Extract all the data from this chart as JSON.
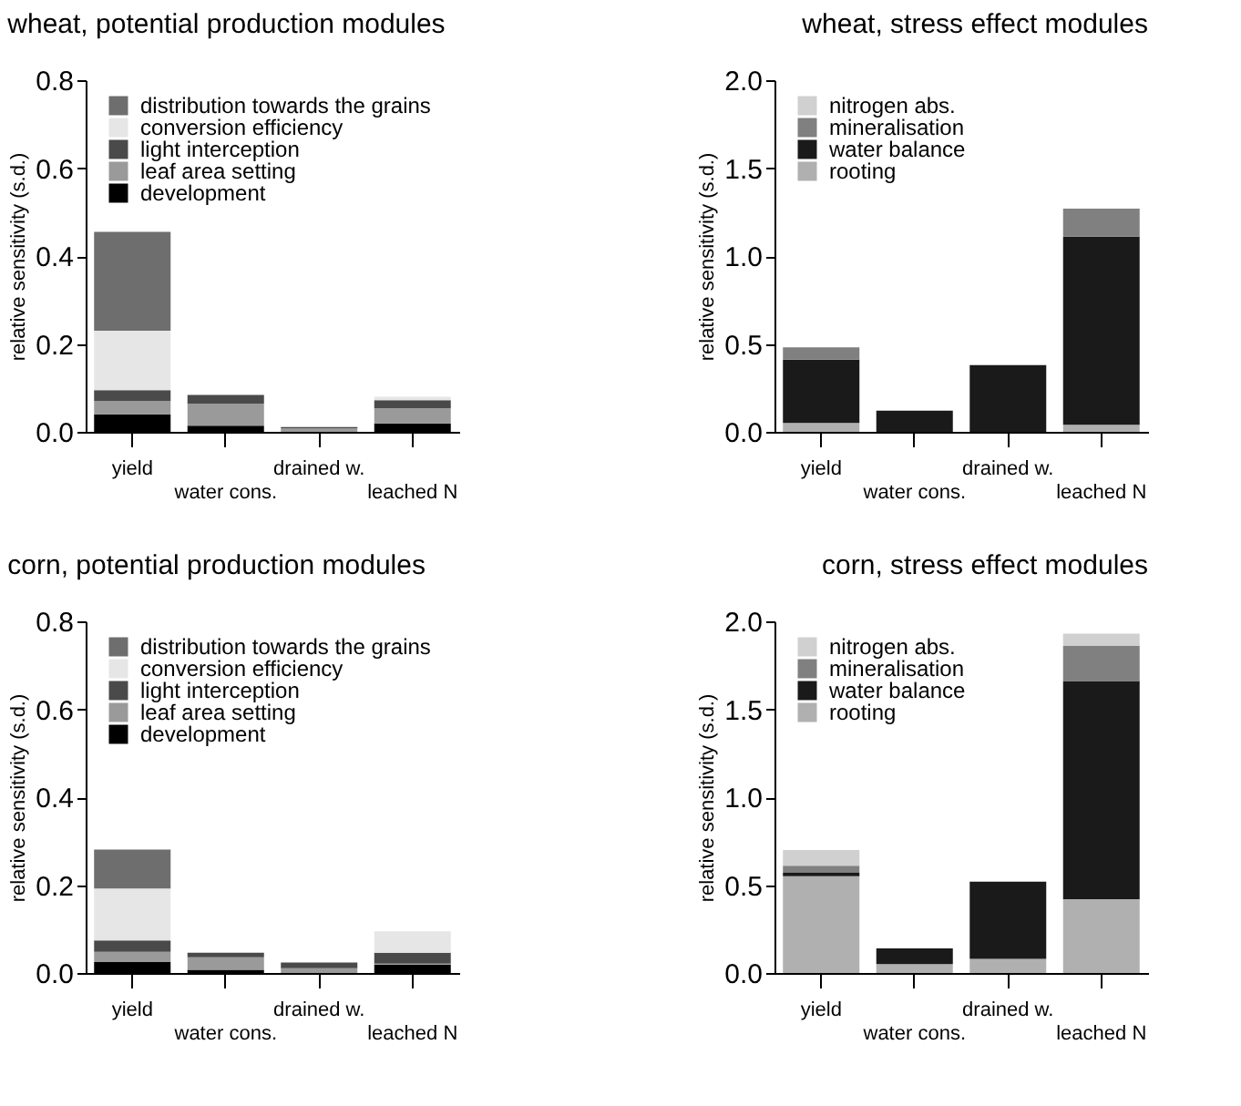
{
  "chart_data": [
    {
      "type": "bar",
      "stacked": true,
      "title": "wheat, potential production modules",
      "ylabel": "relative sensitivity (s.d.)",
      "categories": [
        "yield",
        "water cons.",
        "drained w.",
        "leached N"
      ],
      "ylim": [
        0,
        0.8
      ],
      "yticks": [
        {
          "value": 0,
          "label": "0.0"
        },
        {
          "value": 0.2,
          "label": "0.2"
        },
        {
          "value": 0.4,
          "label": "0.4"
        },
        {
          "value": 0.6,
          "label": "0.6"
        },
        {
          "value": 0.8,
          "label": "0.8"
        }
      ],
      "legend": "top left",
      "series": [
        {
          "name": "development",
          "color": "#000000",
          "values": [
            0.04,
            0.014,
            null,
            0.019
          ]
        },
        {
          "name": "leaf area setting",
          "color": "#9a9a9a",
          "values": [
            0.03,
            0.05,
            0.008,
            0.035
          ]
        },
        {
          "name": "light interception",
          "color": "#4a4a4a",
          "values": [
            0.025,
            0.02,
            0.003,
            0.018
          ]
        },
        {
          "name": "conversion efficiency",
          "color": "#e6e6e6",
          "values": [
            0.135,
            0,
            0,
            0.008
          ]
        },
        {
          "name": "distribution towards the grains",
          "color": "#6e6e6e",
          "values": [
            0.225,
            0,
            0,
            0
          ]
        }
      ]
    },
    {
      "type": "bar",
      "stacked": true,
      "title": "wheat, stress effect modules",
      "ylabel": "relative sensitivity (s.d.)",
      "categories": [
        "yield",
        "water cons.",
        "drained w.",
        "leached N"
      ],
      "ylim": [
        0,
        2
      ],
      "yticks": [
        {
          "value": 0,
          "label": "0.0"
        },
        {
          "value": 0.5,
          "label": "0.5"
        },
        {
          "value": 1,
          "label": "1.0"
        },
        {
          "value": 1.5,
          "label": "1.5"
        },
        {
          "value": 2,
          "label": "2.0"
        }
      ],
      "legend": "top left",
      "series": [
        {
          "name": "rooting",
          "color": "#b0b0b0",
          "values": [
            0.05,
            0,
            0,
            0.04
          ]
        },
        {
          "name": "water balance",
          "color": "#1a1a1a",
          "values": [
            0.36,
            0.12,
            0.38,
            1.07
          ]
        },
        {
          "name": "mineralisation",
          "color": "#808080",
          "values": [
            0.07,
            0,
            0,
            0.16
          ]
        },
        {
          "name": "nitrogen abs.",
          "color": "#d0d0d0",
          "values": [
            null,
            0,
            0,
            null
          ]
        }
      ]
    },
    {
      "type": "bar",
      "stacked": true,
      "title": "corn, potential production modules",
      "ylabel": "relative sensitivity (s.d.)",
      "categories": [
        "yield",
        "water cons.",
        "drained w.",
        "leached N"
      ],
      "ylim": [
        0,
        0.8
      ],
      "yticks": [
        {
          "value": 0,
          "label": "0.0"
        },
        {
          "value": 0.2,
          "label": "0.2"
        },
        {
          "value": 0.4,
          "label": "0.4"
        },
        {
          "value": 0.6,
          "label": "0.6"
        },
        {
          "value": 0.8,
          "label": "0.8"
        }
      ],
      "legend": "top left",
      "series": [
        {
          "name": "development",
          "color": "#000000",
          "values": [
            0.025,
            0.007,
            null,
            0.019
          ]
        },
        {
          "name": "leaf area setting",
          "color": "#9a9a9a",
          "values": [
            0.023,
            0.029,
            0.011,
            0.002
          ]
        },
        {
          "name": "light interception",
          "color": "#4a4a4a",
          "values": [
            0.026,
            0.01,
            0.013,
            0.025
          ]
        },
        {
          "name": "conversion efficiency",
          "color": "#e6e6e6",
          "values": [
            0.118,
            0,
            0,
            0.049
          ]
        },
        {
          "name": "distribution towards the grains",
          "color": "#6e6e6e",
          "values": [
            0.089,
            0,
            0,
            0
          ]
        }
      ]
    },
    {
      "type": "bar",
      "stacked": true,
      "title": "corn, stress effect modules",
      "ylabel": "relative sensitivity (s.d.)",
      "categories": [
        "yield",
        "water cons.",
        "drained w.",
        "leached N"
      ],
      "ylim": [
        0,
        2
      ],
      "yticks": [
        {
          "value": 0,
          "label": "0.0"
        },
        {
          "value": 0.5,
          "label": "0.5"
        },
        {
          "value": 1,
          "label": "1.0"
        },
        {
          "value": 1.5,
          "label": "1.5"
        },
        {
          "value": 2,
          "label": "2.0"
        }
      ],
      "legend": "top left",
      "series": [
        {
          "name": "rooting",
          "color": "#b0b0b0",
          "values": [
            0.55,
            0.05,
            0.08,
            0.42
          ]
        },
        {
          "name": "water balance",
          "color": "#1a1a1a",
          "values": [
            0.02,
            0.09,
            0.44,
            1.24
          ]
        },
        {
          "name": "mineralisation",
          "color": "#808080",
          "values": [
            0.04,
            0,
            0,
            0.2
          ]
        },
        {
          "name": "nitrogen abs.",
          "color": "#d0d0d0",
          "values": [
            0.09,
            0,
            0,
            0.07
          ]
        }
      ]
    }
  ]
}
